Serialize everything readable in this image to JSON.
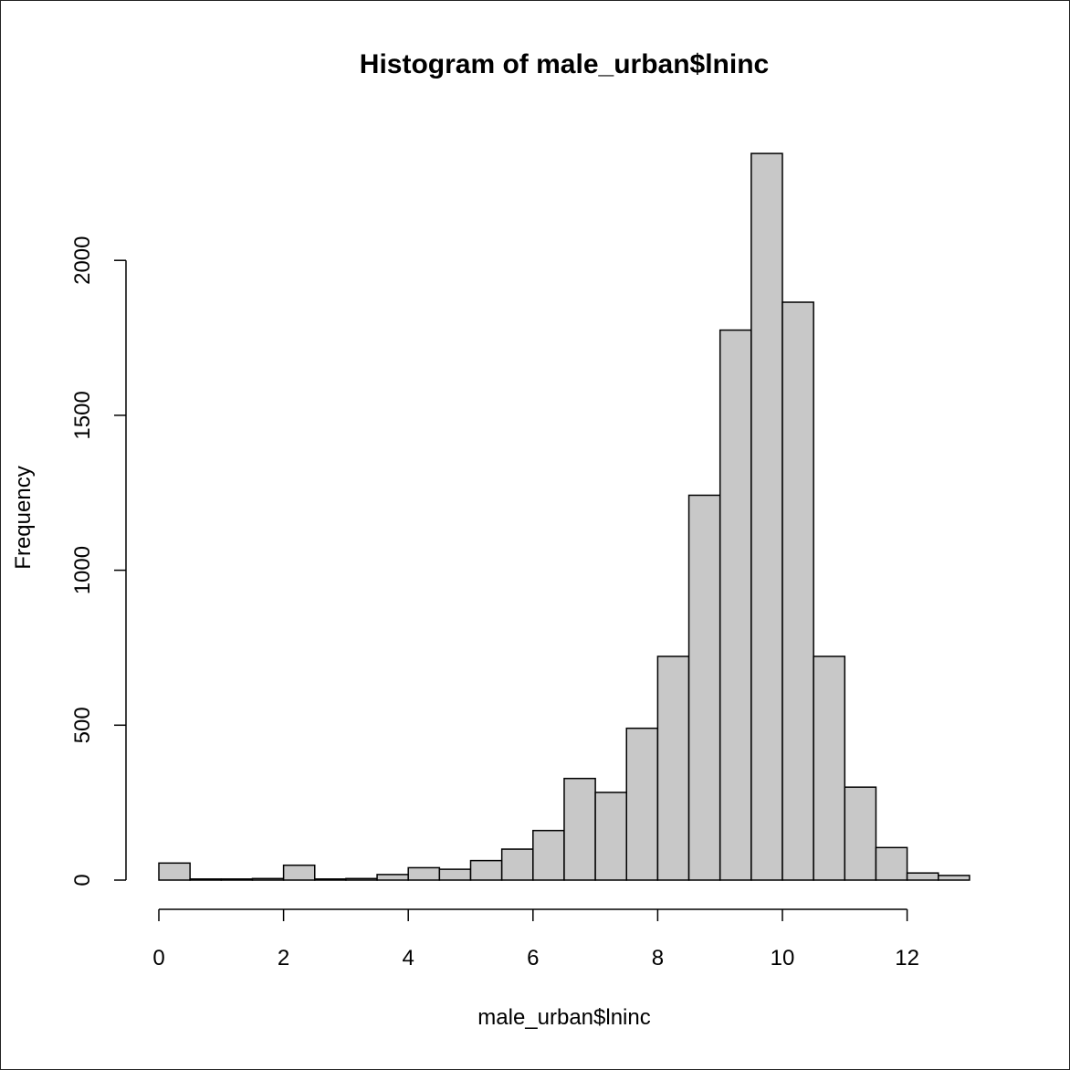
{
  "chart_data": {
    "type": "bar",
    "title": "Histogram of male_urban$lninc",
    "xlabel": "male_urban$lninc",
    "ylabel": "Frequency",
    "bin_edges": [
      0,
      0.5,
      1,
      1.5,
      2,
      2.5,
      3,
      3.5,
      4,
      4.5,
      5,
      5.5,
      6,
      6.5,
      7,
      7.5,
      8,
      8.5,
      9,
      9.5,
      10,
      10.5,
      11,
      11.5,
      12,
      12.5,
      13
    ],
    "values": [
      55,
      0,
      0,
      5,
      48,
      3,
      5,
      18,
      40,
      35,
      63,
      100,
      160,
      328,
      283,
      490,
      722,
      1242,
      1775,
      2345,
      1865,
      722,
      300,
      105,
      23,
      15
    ],
    "x_ticks": [
      "0",
      "2",
      "4",
      "6",
      "8",
      "10",
      "12"
    ],
    "x_tick_values": [
      0,
      2,
      4,
      6,
      8,
      10,
      12
    ],
    "y_ticks": [
      "0",
      "500",
      "1000",
      "1500",
      "2000"
    ],
    "y_tick_values": [
      0,
      500,
      1000,
      1500,
      2000
    ],
    "xlim": [
      0,
      13
    ],
    "ylim": [
      0,
      2345
    ],
    "grid": false,
    "colors": {
      "bar_fill": "#c8c8c8",
      "bar_stroke": "#000000"
    }
  }
}
